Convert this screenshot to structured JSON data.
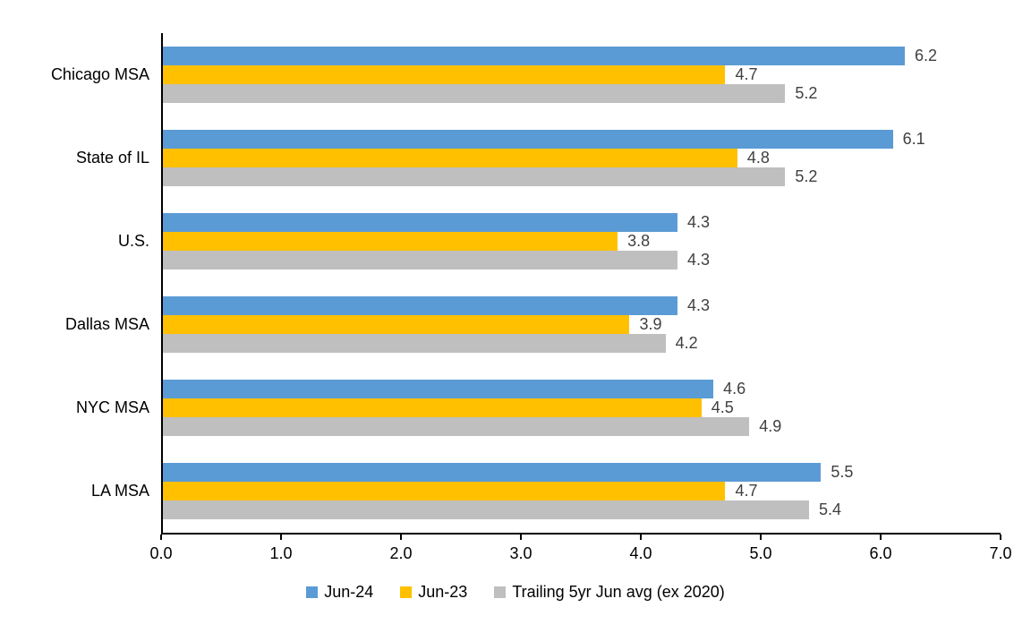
{
  "chart_data": {
    "type": "bar",
    "orientation": "horizontal",
    "title": "",
    "categories": [
      "Chicago MSA",
      "State of IL",
      "U.S.",
      "Dallas MSA",
      "NYC MSA",
      "LA MSA"
    ],
    "series": [
      {
        "name": "Jun-24",
        "color": "#5B9BD5",
        "values": [
          6.2,
          6.1,
          4.3,
          4.3,
          4.6,
          5.5
        ]
      },
      {
        "name": "Jun-23",
        "color": "#FFC000",
        "values": [
          4.7,
          4.8,
          3.8,
          3.9,
          4.5,
          4.7
        ]
      },
      {
        "name": "Trailing 5yr Jun avg (ex 2020)",
        "color": "#BFBFBF",
        "values": [
          5.2,
          5.2,
          4.3,
          4.2,
          4.9,
          5.4
        ]
      }
    ],
    "xlim": [
      0,
      7
    ],
    "x_ticks": [
      "0.0",
      "1.0",
      "2.0",
      "3.0",
      "4.0",
      "5.0",
      "6.0",
      "7.0"
    ],
    "value_label_decimals": 1,
    "value_label_color": "#404040",
    "axis_color": "#000000",
    "background_color": "#FFFFFF",
    "grid": false,
    "legend_position": "bottom"
  }
}
